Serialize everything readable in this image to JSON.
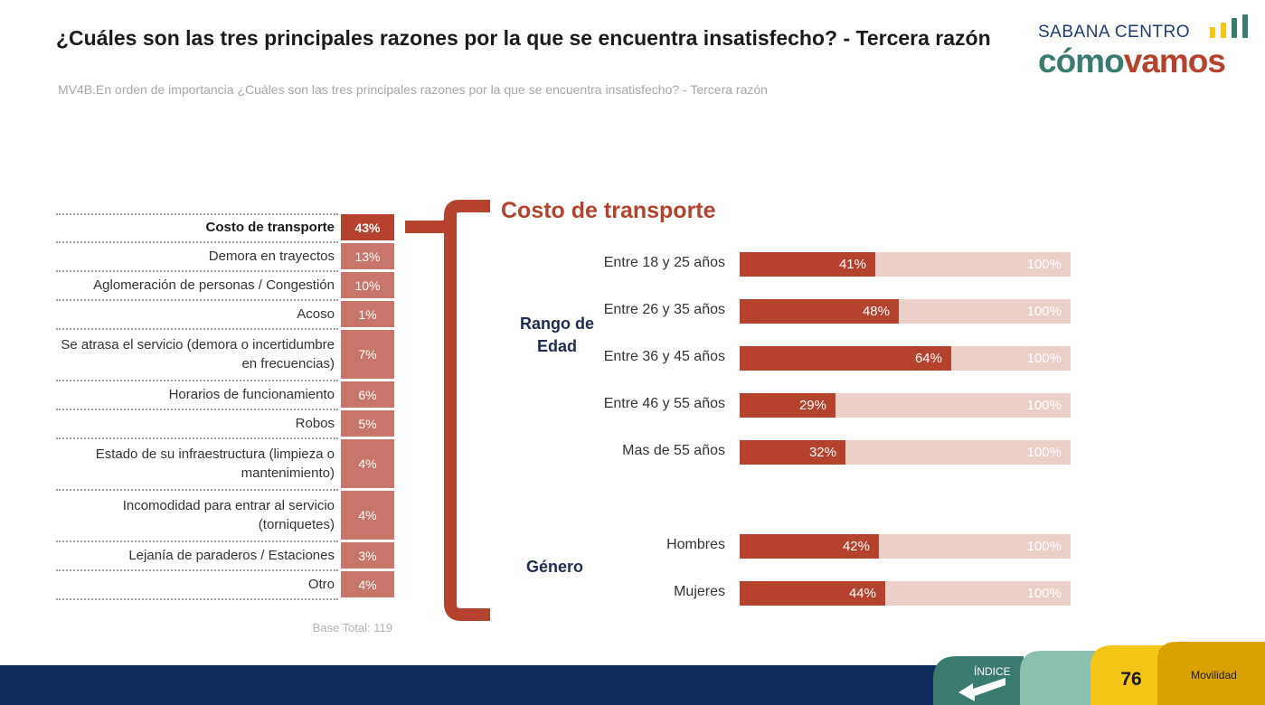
{
  "header": {
    "title": "¿Cuáles son las tres principales razones por la que se encuentra insatisfecho? - Tercera razón",
    "subtitle": "MV4B.En orden de importancia ¿Cuáles son las tres principales razones por la que se encuentra insatisfecho? - Tercera razón"
  },
  "logo": {
    "top": "SABANA CENTRO",
    "main_a": "cómo",
    "main_b": "vamos"
  },
  "colors": {
    "accent": "#b5422c",
    "accent_light": "#c8766a",
    "bar_bg": "#ebd0ca",
    "navy": "#0f2c5c",
    "teal": "#3a7b6f",
    "yellow": "#f5c518"
  },
  "chart_data": [
    {
      "type": "table",
      "rows": [
        {
          "label": "Costo de transporte",
          "value": "43%",
          "highlight": true
        },
        {
          "label": "Demora en trayectos",
          "value": "13%"
        },
        {
          "label": "Aglomeración de personas / Congestión",
          "value": "10%"
        },
        {
          "label": "Acoso",
          "value": "1%"
        },
        {
          "label": "Se atrasa el servicio (demora o incertidumbre en frecuencias)",
          "value": "7%"
        },
        {
          "label": "Horarios de funcionamiento",
          "value": "6%"
        },
        {
          "label": "Robos",
          "value": "5%"
        },
        {
          "label": "Estado de su infraestructura (limpieza o mantenimiento)",
          "value": "4%"
        },
        {
          "label": "Incomodidad para entrar al servicio (torniquetes)",
          "value": "4%"
        },
        {
          "label": "Lejanía de paraderos / Estaciones",
          "value": "3%"
        },
        {
          "label": "Otro",
          "value": "4%"
        }
      ],
      "base": "Base Total: 119"
    },
    {
      "type": "bar",
      "title": "Costo de transporte",
      "total_label": "100%",
      "groups": [
        {
          "name": "Rango de Edad",
          "categories": [
            "Entre 18 y 25 años",
            "Entre 26 y 35 años",
            "Entre 36 y 45 años",
            "Entre 46 y 55 años",
            "Mas de 55 años"
          ],
          "values": [
            41,
            48,
            64,
            29,
            32
          ]
        },
        {
          "name": "Género",
          "categories": [
            "Hombres",
            "Mujeres"
          ],
          "values": [
            42,
            44
          ]
        }
      ],
      "ylim": [
        0,
        100
      ]
    }
  ],
  "footer": {
    "indice_label": "ÍNDICE",
    "page_number": "76",
    "section": "Movilidad"
  }
}
